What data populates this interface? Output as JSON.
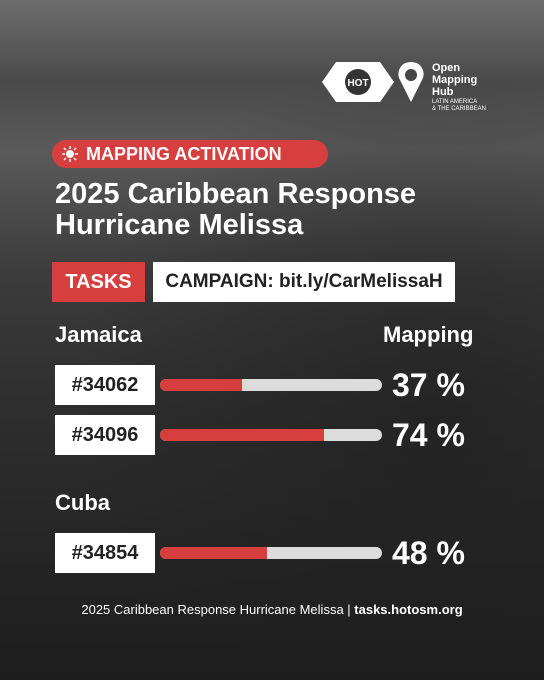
{
  "logos": {
    "hot": "HOT",
    "hub": [
      "Open",
      "Mapping",
      "Hub"
    ],
    "region": [
      "LATIN AMERICA",
      "& THE CARIBBEAN"
    ]
  },
  "badge": "MAPPING ACTIVATION",
  "title": [
    "2025 Caribbean Response",
    "Hurricane Melissa"
  ],
  "tasks_label": "TASKS",
  "campaign": "CAMPAIGN: bit.ly/CarMelissaH",
  "column_header": "Mapping",
  "progress_scale": [
    0,
    100
  ],
  "groups": [
    {
      "name": "Jamaica",
      "tasks": [
        {
          "id": "#34062",
          "progress": 37,
          "progress_label": "37 %"
        },
        {
          "id": "#34096",
          "progress": 74,
          "progress_label": "74 %"
        }
      ]
    },
    {
      "name": "Cuba",
      "tasks": [
        {
          "id": "#34854",
          "progress": 48,
          "progress_label": "48 %"
        }
      ]
    }
  ],
  "footer": {
    "text": "2025 Caribbean Response Hurricane Melissa | ",
    "link": "tasks.hotosm.org"
  }
}
